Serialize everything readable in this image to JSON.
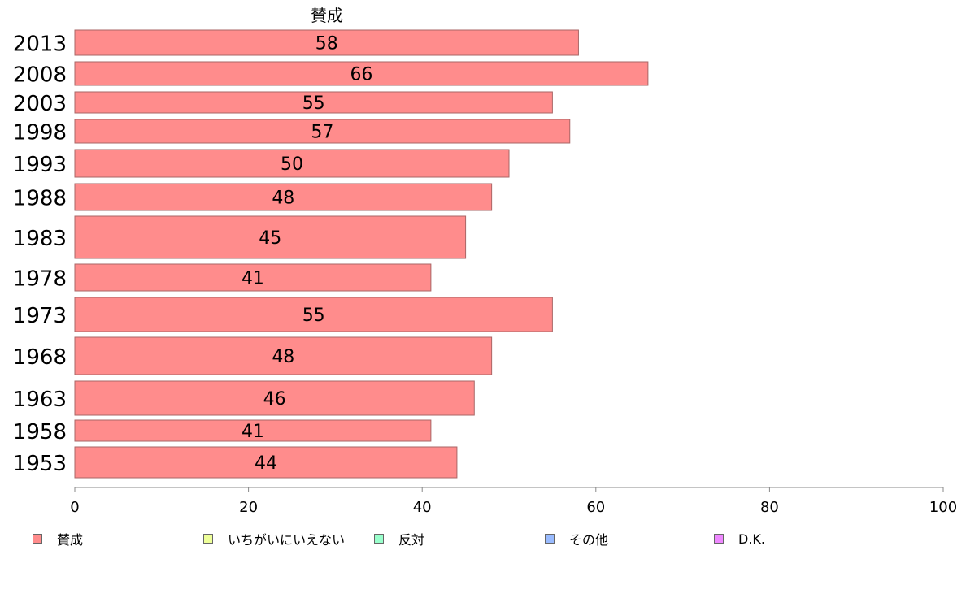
{
  "chart_data": {
    "type": "bar",
    "orientation": "horizontal",
    "title": "賛成",
    "categories": [
      "2013",
      "2008",
      "2003",
      "1998",
      "1993",
      "1988",
      "1983",
      "1978",
      "1973",
      "1968",
      "1963",
      "1958",
      "1953"
    ],
    "series": [
      {
        "name": "賛成",
        "values": [
          58,
          66,
          55,
          57,
          50,
          48,
          45,
          41,
          55,
          48,
          46,
          41,
          44
        ]
      }
    ],
    "data_labels": [
      "58",
      "66",
      "55",
      "57",
      "50",
      "48",
      "45",
      "41",
      "55",
      "48",
      "46",
      "41",
      "44"
    ],
    "xlim": [
      0,
      100
    ],
    "xticks": [
      0,
      20,
      40,
      60,
      80,
      100
    ],
    "grid": false,
    "legend_position": "bottom",
    "legend": [
      {
        "label": "賛成",
        "color": "#ff8c8c"
      },
      {
        "label": "いちがいにいえない",
        "color": "#eeff99"
      },
      {
        "label": "反対",
        "color": "#99ffcc"
      },
      {
        "label": "その他",
        "color": "#99bbff"
      },
      {
        "label": "D.K.",
        "color": "#ee88ff"
      }
    ],
    "bar_color": "#ff8c8c",
    "bar_border_color": "#aa6666"
  }
}
